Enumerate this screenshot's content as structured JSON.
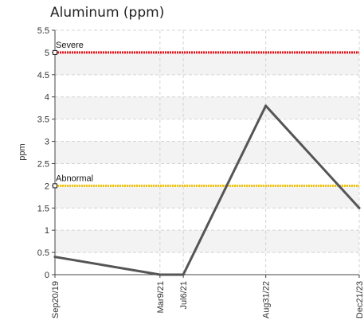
{
  "chart_data": {
    "type": "line",
    "title": "Aluminum (ppm)",
    "xlabel": "",
    "ylabel": "ppm",
    "ylim": [
      0,
      5.5
    ],
    "yticks": [
      "0",
      "0.5",
      "1",
      "1.5",
      "2",
      "2.5",
      "3",
      "3.5",
      "4",
      "4.5",
      "5",
      "5.5"
    ],
    "categories": [
      "Sep20/19",
      "Mar9/21",
      "Jul6/21",
      "Aug31/22",
      "Dec21/23"
    ],
    "x": [
      "2019-09-20",
      "2021-03-09",
      "2021-07-06",
      "2022-08-31",
      "2023-12-21"
    ],
    "series": [
      {
        "values": [
          0.4,
          0,
          0,
          3.8,
          1.5
        ],
        "color": "#555555"
      }
    ],
    "thresholds": [
      {
        "label": "Severe",
        "value": 5,
        "color": "#e8141b"
      },
      {
        "label": "Abnormal",
        "value": 2,
        "color": "#f2c200"
      }
    ],
    "grid": true
  }
}
